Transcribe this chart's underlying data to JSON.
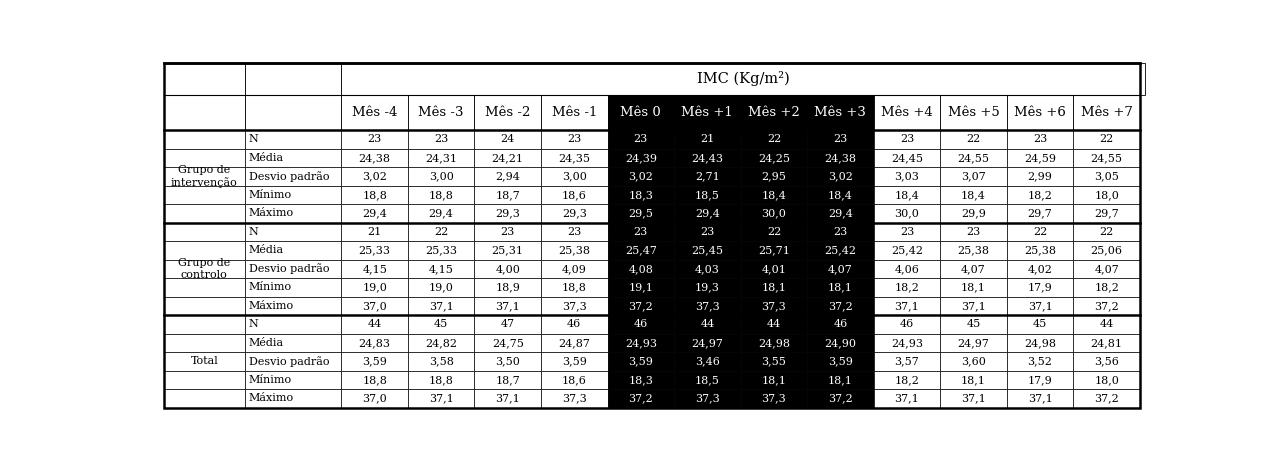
{
  "title": "IMC (Kg/m²)",
  "col_headers": [
    "Mês -4",
    "Mês -3",
    "Mês -2",
    "Mês -1",
    "Mês 0",
    "Mês +1",
    "Mês +2",
    "Mês +3",
    "Mês +4",
    "Mês +5",
    "Mês +6",
    "Mês +7"
  ],
  "row_sub_labels": [
    "N",
    "Média",
    "Desvio padrão",
    "Mínimo",
    "Máximo"
  ],
  "data": {
    "Grupo de\nintervenção": {
      "N": [
        23,
        23,
        24,
        23,
        23,
        21,
        22,
        23,
        23,
        22,
        23,
        22
      ],
      "Média": [
        24.38,
        24.31,
        24.21,
        24.35,
        24.39,
        24.43,
        24.25,
        24.38,
        24.45,
        24.55,
        24.59,
        24.55
      ],
      "Desvio padrão": [
        3.02,
        3.0,
        2.94,
        3.0,
        3.02,
        2.71,
        2.95,
        3.02,
        3.03,
        3.07,
        2.99,
        3.05
      ],
      "Mínimo": [
        18.8,
        18.8,
        18.7,
        18.6,
        18.3,
        18.5,
        18.4,
        18.4,
        18.4,
        18.4,
        18.2,
        18.0
      ],
      "Máximo": [
        29.4,
        29.4,
        29.3,
        29.3,
        29.5,
        29.4,
        30.0,
        29.4,
        30.0,
        29.9,
        29.7,
        29.7
      ]
    },
    "Grupo de\ncontrolo": {
      "N": [
        21,
        22,
        23,
        23,
        23,
        23,
        22,
        23,
        23,
        23,
        22,
        22
      ],
      "Média": [
        25.33,
        25.33,
        25.31,
        25.38,
        25.47,
        25.45,
        25.71,
        25.42,
        25.42,
        25.38,
        25.38,
        25.06
      ],
      "Desvio padrão": [
        4.15,
        4.15,
        4.0,
        4.09,
        4.08,
        4.03,
        4.01,
        4.07,
        4.06,
        4.07,
        4.02,
        4.07
      ],
      "Mínimo": [
        19.0,
        19.0,
        18.9,
        18.8,
        19.1,
        19.3,
        18.1,
        18.1,
        18.2,
        18.1,
        17.9,
        18.2
      ],
      "Máximo": [
        37.0,
        37.1,
        37.1,
        37.3,
        37.2,
        37.3,
        37.3,
        37.2,
        37.1,
        37.1,
        37.1,
        37.2
      ]
    },
    "Total": {
      "N": [
        44,
        45,
        47,
        46,
        46,
        44,
        44,
        46,
        46,
        45,
        45,
        44
      ],
      "Média": [
        24.83,
        24.82,
        24.75,
        24.87,
        24.93,
        24.97,
        24.98,
        24.9,
        24.93,
        24.97,
        24.98,
        24.81
      ],
      "Desvio padrão": [
        3.59,
        3.58,
        3.5,
        3.59,
        3.59,
        3.46,
        3.55,
        3.59,
        3.57,
        3.6,
        3.52,
        3.56
      ],
      "Mínimo": [
        18.8,
        18.8,
        18.7,
        18.6,
        18.3,
        18.5,
        18.1,
        18.1,
        18.2,
        18.1,
        17.9,
        18.0
      ],
      "Máximo": [
        37.0,
        37.1,
        37.1,
        37.3,
        37.2,
        37.3,
        37.3,
        37.2,
        37.1,
        37.1,
        37.1,
        37.2
      ]
    }
  },
  "highlight_cols": [
    4,
    5,
    6,
    7
  ],
  "highlight_bg": "#000000",
  "highlight_fg": "#ffffff",
  "font_family": "serif",
  "font_size_data": 8.0,
  "font_size_header": 9.5,
  "font_size_title": 10.5
}
